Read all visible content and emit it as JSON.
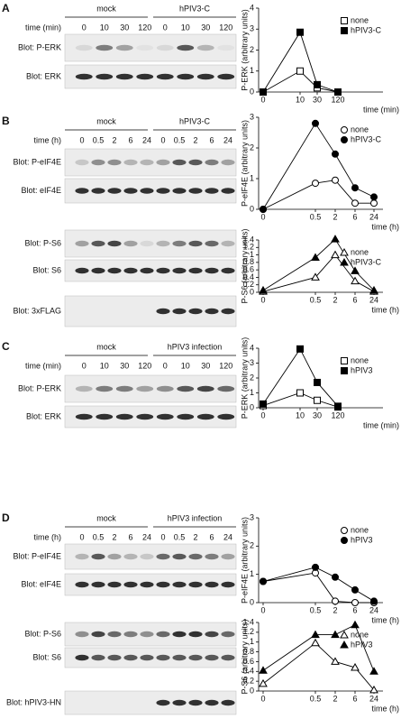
{
  "panels": [
    {
      "label": "A",
      "groups": [
        "mock",
        "hPIV3-C"
      ],
      "time_label": "time (min)",
      "lanes": [
        "0",
        "10",
        "30",
        "120",
        "0",
        "10",
        "30",
        "120"
      ],
      "blots": [
        "Blot: P-ERK",
        "Blot: ERK"
      ]
    },
    {
      "label": "B",
      "groups": [
        "mock",
        "hPIV3-C"
      ],
      "time_label": "time (h)",
      "lanes": [
        "0",
        "0.5",
        "2",
        "6",
        "24",
        "0",
        "0.5",
        "2",
        "6",
        "24"
      ],
      "blots": [
        "Blot: P-eIF4E",
        "Blot: eIF4E",
        "Blot: P-S6",
        "Blot: S6",
        "Blot: 3xFLAG"
      ]
    },
    {
      "label": "C",
      "groups": [
        "mock",
        "hPIV3 infection"
      ],
      "time_label": "time (min)",
      "lanes": [
        "0",
        "10",
        "30",
        "120",
        "0",
        "10",
        "30",
        "120"
      ],
      "blots": [
        "Blot: P-ERK",
        "Blot: ERK"
      ]
    },
    {
      "label": "D",
      "groups": [
        "mock",
        "hPIV3 infection"
      ],
      "time_label": "time (h)",
      "lanes": [
        "0",
        "0.5",
        "2",
        "6",
        "24",
        "0",
        "0.5",
        "2",
        "6",
        "24"
      ],
      "blots": [
        "Blot: P-eIF4E",
        "Blot: eIF4E",
        "Blot: P-S6",
        "Blot: S6",
        "Blot: hPIV3-HN"
      ]
    }
  ],
  "chart_data": [
    {
      "type": "line",
      "ylabel": "P-ERK (arbitrary units)",
      "xlabel": "time (min)",
      "categories": [
        "0",
        "10",
        "30",
        "120"
      ],
      "ylim": [
        0,
        4
      ],
      "yticks": [
        0,
        1,
        2,
        3,
        4
      ],
      "legend": "upper right",
      "series": [
        {
          "name": "none",
          "color": "#000000",
          "marker": "square",
          "filled": false,
          "values": [
            0,
            1,
            0.2,
            0
          ]
        },
        {
          "name": "hPIV3-C",
          "color": "#000000",
          "marker": "square",
          "filled": true,
          "values": [
            0,
            2.85,
            0.35,
            0
          ]
        }
      ]
    },
    {
      "type": "line",
      "ylabel": "P-eIF4E (arbitrary units)",
      "xlabel": "time (h)",
      "categories": [
        "0",
        "0.5",
        "2",
        "6",
        "24"
      ],
      "ylim": [
        0,
        3
      ],
      "yticks": [
        0,
        1,
        2,
        3
      ],
      "legend": "upper right",
      "series": [
        {
          "name": "none",
          "color": "#000000",
          "marker": "circle",
          "filled": false,
          "values": [
            0,
            0.85,
            0.95,
            0.2,
            0.2
          ]
        },
        {
          "name": "hPIV3-C",
          "color": "#000000",
          "marker": "circle",
          "filled": true,
          "values": [
            0,
            2.8,
            1.8,
            0.7,
            0.4
          ]
        }
      ]
    },
    {
      "type": "line",
      "ylabel": "P-S6 (arbitrary units)",
      "xlabel": "time (h)",
      "categories": [
        "0",
        "0.5",
        "2",
        "6",
        "24"
      ],
      "ylim": [
        0,
        1.4
      ],
      "yticks": [
        0,
        0.2,
        0.4,
        0.6,
        0.8,
        1,
        1.2,
        1.4
      ],
      "legend": "upper right",
      "series": [
        {
          "name": "none",
          "color": "#000000",
          "marker": "triangle",
          "filled": false,
          "values": [
            0.02,
            0.4,
            1.0,
            0.3,
            0.02
          ]
        },
        {
          "name": "hPIV3-C",
          "color": "#000000",
          "marker": "triangle",
          "filled": true,
          "values": [
            0.05,
            0.93,
            1.42,
            0.57,
            0.05
          ]
        }
      ]
    },
    {
      "type": "line",
      "ylabel": "P-ERK (arbitrary units)",
      "xlabel": "time (min)",
      "categories": [
        "0",
        "10",
        "30",
        "120"
      ],
      "ylim": [
        0,
        4
      ],
      "yticks": [
        0,
        1,
        2,
        3,
        4
      ],
      "legend": "upper right",
      "series": [
        {
          "name": "none",
          "color": "#000000",
          "marker": "square",
          "filled": false,
          "values": [
            0.15,
            1.0,
            0.5,
            0.05
          ]
        },
        {
          "name": "hPIV3",
          "color": "#000000",
          "marker": "square",
          "filled": true,
          "values": [
            0.25,
            3.95,
            1.7,
            0.1
          ]
        }
      ]
    },
    {
      "type": "line",
      "ylabel": "P-eIF4E (arbitrary units)",
      "xlabel": "time (h)",
      "categories": [
        "0",
        "0.5",
        "2",
        "6",
        "24"
      ],
      "ylim": [
        0,
        3
      ],
      "yticks": [
        0,
        1,
        2,
        3
      ],
      "legend": "upper right",
      "series": [
        {
          "name": "none",
          "color": "#000000",
          "marker": "circle",
          "filled": false,
          "values": [
            0.75,
            1.05,
            0.05,
            0,
            0
          ]
        },
        {
          "name": "hPIV3",
          "color": "#000000",
          "marker": "circle",
          "filled": true,
          "values": [
            0.75,
            1.25,
            0.9,
            0.45,
            0.05
          ]
        }
      ]
    },
    {
      "type": "line",
      "ylabel": "P-S6 (arbitrary units)",
      "xlabel": "time (h)",
      "categories": [
        "0",
        "0.5",
        "2",
        "6",
        "24"
      ],
      "ylim": [
        0,
        1.4
      ],
      "yticks": [
        0,
        0.2,
        0.4,
        0.6,
        0.8,
        1,
        1.2,
        1.4
      ],
      "legend": "upper right",
      "series": [
        {
          "name": "none",
          "color": "#000000",
          "marker": "triangle",
          "filled": false,
          "values": [
            0.15,
            0.98,
            0.6,
            0.48,
            0.02
          ]
        },
        {
          "name": "hPIV3",
          "color": "#000000",
          "marker": "triangle",
          "filled": true,
          "values": [
            0.42,
            1.15,
            1.15,
            1.35,
            0.4
          ]
        }
      ]
    }
  ]
}
